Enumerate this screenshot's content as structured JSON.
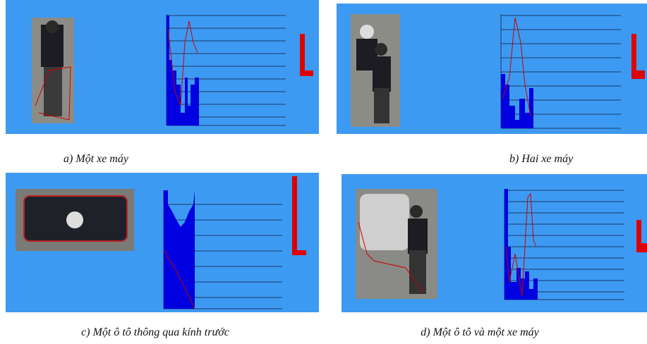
{
  "figure": {
    "panels": [
      {
        "caption": "a) Một xe máy"
      },
      {
        "caption": "b) Hai xe máy"
      },
      {
        "caption": "c) Một ô tô thông qua kính trước"
      },
      {
        "caption": "d) Một ô tô và một xe máy"
      }
    ]
  }
}
